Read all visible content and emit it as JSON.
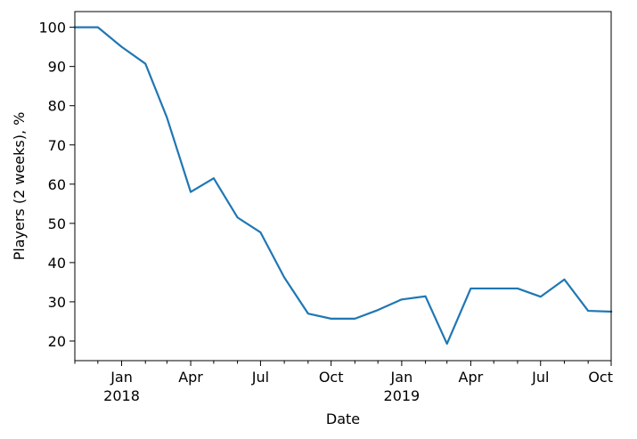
{
  "chart_data": {
    "type": "line",
    "title": "",
    "xlabel": "Date",
    "ylabel": "Players (2 weeks), %",
    "ylim": [
      15,
      104
    ],
    "xlim": [
      "2017-11-01",
      "2019-10-01"
    ],
    "grid": false,
    "series": [
      {
        "color": "#1f77b4",
        "x": [
          "2017-11-01",
          "2017-12-01",
          "2018-01-01",
          "2018-02-01",
          "2018-03-01",
          "2018-04-01",
          "2018-05-01",
          "2018-06-01",
          "2018-07-01",
          "2018-08-01",
          "2018-09-01",
          "2018-10-01",
          "2018-11-01",
          "2018-12-01",
          "2019-01-01",
          "2019-02-01",
          "2019-03-01",
          "2019-04-01",
          "2019-05-01",
          "2019-06-01",
          "2019-07-01",
          "2019-08-01",
          "2019-09-01",
          "2019-10-01"
        ],
        "values": [
          100,
          100,
          95,
          90.7,
          77,
          58,
          61.5,
          51.5,
          47.7,
          36.2,
          27,
          25.7,
          25.7,
          27.9,
          30.6,
          31.4,
          19.3,
          33.4,
          33.4,
          33.4,
          31.3,
          35.7,
          27.7,
          27.5
        ]
      }
    ],
    "y_ticks": [
      "20",
      "30",
      "40",
      "50",
      "60",
      "70",
      "80",
      "90",
      "100"
    ],
    "x_major_ticks": [
      {
        "date": "2018-01-01",
        "label": "Jan",
        "sublabel": "2018"
      },
      {
        "date": "2018-04-01",
        "label": "Apr",
        "sublabel": ""
      },
      {
        "date": "2018-07-01",
        "label": "Jul",
        "sublabel": ""
      },
      {
        "date": "2018-10-01",
        "label": "Oct",
        "sublabel": ""
      },
      {
        "date": "2019-01-01",
        "label": "Jan",
        "sublabel": "2019"
      },
      {
        "date": "2019-04-01",
        "label": "Apr",
        "sublabel": ""
      },
      {
        "date": "2019-07-01",
        "label": "Jul",
        "sublabel": ""
      },
      {
        "date": "2019-10-01",
        "label": "Oct",
        "sublabel": ""
      }
    ]
  }
}
